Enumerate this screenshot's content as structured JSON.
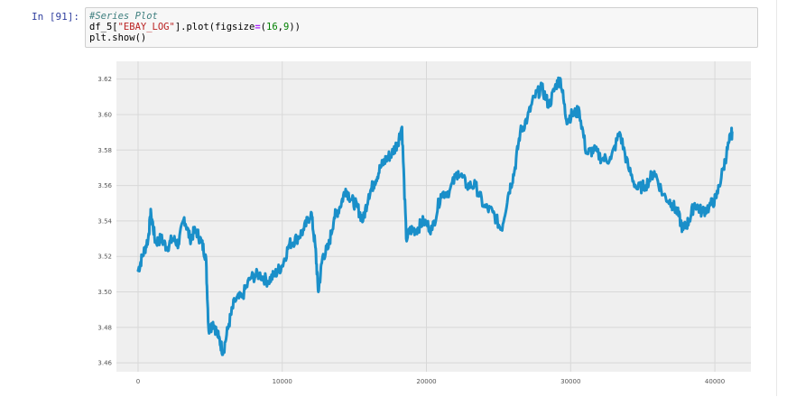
{
  "cell": {
    "prompt": "In [91]:",
    "code_lines": [
      {
        "comment": "#Series Plot"
      },
      {
        "pre": "df_5[",
        "str": "\"EBAY_LOG\"",
        "mid": "].plot(figsize",
        "op": "=",
        "paren": "(",
        "n1": "16",
        "comma": ",",
        "n2": "9",
        "close": "))"
      },
      {
        "plain": "plt.show()"
      }
    ]
  },
  "colors": {
    "line": "#1a8fc9",
    "plot_bg": "#efefef",
    "grid": "#d8d8d8",
    "tick_text": "#555555"
  },
  "chart_data": {
    "type": "line",
    "title": "",
    "xlabel": "",
    "ylabel": "",
    "xlim": [
      -1500,
      42500
    ],
    "ylim": [
      3.455,
      3.63
    ],
    "xticks": [
      0,
      10000,
      20000,
      30000,
      40000
    ],
    "xtick_labels": [
      "0",
      "10000",
      "20000",
      "30000",
      "40000"
    ],
    "yticks": [
      3.46,
      3.48,
      3.5,
      3.52,
      3.54,
      3.56,
      3.58,
      3.6,
      3.62
    ],
    "ytick_labels": [
      "3.46",
      "3.48",
      "3.50",
      "3.52",
      "3.54",
      "3.56",
      "3.58",
      "3.60",
      "3.62"
    ],
    "grid": true,
    "series": [
      {
        "x": [
          0,
          300,
          700,
          900,
          1200,
          1600,
          2000,
          2400,
          2800,
          3200,
          3600,
          4000,
          4400,
          4700,
          4900,
          5200,
          5600,
          5900,
          6300,
          6700,
          7200,
          7800,
          8400,
          9000,
          9500,
          10000,
          10500,
          11000,
          11500,
          12000,
          12300,
          12500,
          12800,
          13200,
          13600,
          14000,
          14400,
          14800,
          15200,
          15600,
          16000,
          16400,
          16800,
          17200,
          17600,
          18000,
          18300,
          18600,
          18900,
          19300,
          19800,
          20400,
          21000,
          21600,
          22200,
          22800,
          23400,
          24000,
          24600,
          25200,
          25700,
          26100,
          26500,
          27000,
          27500,
          28000,
          28500,
          29000,
          29300,
          29700,
          30100,
          30600,
          31100,
          31600,
          32200,
          32800,
          33400,
          34000,
          34600,
          35200,
          35800,
          36400,
          37000,
          37400,
          37800,
          38200,
          38600,
          39100,
          39600,
          40100,
          40600,
          41000,
          41200
        ],
        "y": [
          3.512,
          3.52,
          3.53,
          3.545,
          3.528,
          3.53,
          3.525,
          3.53,
          3.527,
          3.542,
          3.53,
          3.535,
          3.528,
          3.52,
          3.478,
          3.483,
          3.474,
          3.466,
          3.482,
          3.495,
          3.497,
          3.508,
          3.51,
          3.506,
          3.51,
          3.515,
          3.527,
          3.53,
          3.535,
          3.545,
          3.525,
          3.5,
          3.52,
          3.525,
          3.542,
          3.548,
          3.558,
          3.552,
          3.548,
          3.54,
          3.555,
          3.562,
          3.57,
          3.575,
          3.578,
          3.584,
          3.593,
          3.53,
          3.535,
          3.535,
          3.54,
          3.535,
          3.555,
          3.557,
          3.568,
          3.56,
          3.56,
          3.548,
          3.545,
          3.535,
          3.556,
          3.568,
          3.59,
          3.598,
          3.61,
          3.615,
          3.605,
          3.617,
          3.62,
          3.597,
          3.6,
          3.602,
          3.578,
          3.58,
          3.575,
          3.575,
          3.59,
          3.57,
          3.558,
          3.56,
          3.568,
          3.555,
          3.55,
          3.545,
          3.535,
          3.54,
          3.55,
          3.545,
          3.548,
          3.553,
          3.57,
          3.585,
          3.59
        ]
      }
    ]
  }
}
